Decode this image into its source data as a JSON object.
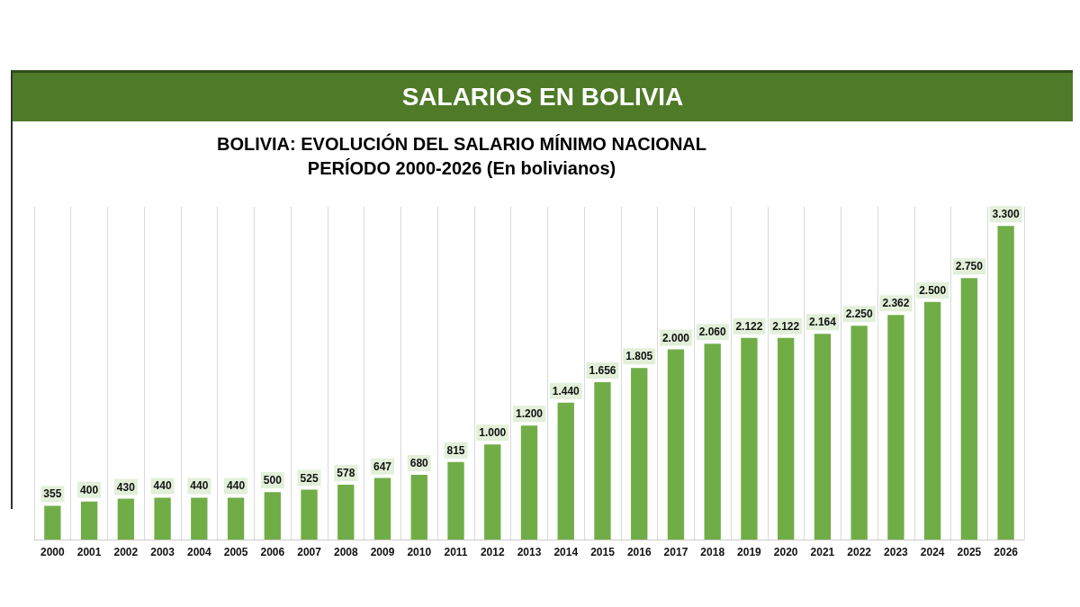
{
  "chart_data": {
    "type": "bar",
    "title": "SALARIOS EN BOLIVIA",
    "subtitle": "BOLIVIA: EVOLUCIÓN DEL SALARIO MÍNIMO NACIONAL\nPERÍODO 2000-2026 (En bolivianos)",
    "categories": [
      "2000",
      "2001",
      "2002",
      "2003",
      "2004",
      "2005",
      "2006",
      "2007",
      "2008",
      "2009",
      "2010",
      "2011",
      "2012",
      "2013",
      "2014",
      "2015",
      "2016",
      "2017",
      "2018",
      "2019",
      "2020",
      "2021",
      "2022",
      "2023",
      "2024",
      "2025",
      "2026"
    ],
    "values": [
      355,
      400,
      430,
      440,
      440,
      440,
      500,
      525,
      578,
      647,
      680,
      815,
      1000,
      1200,
      1440,
      1656,
      1805,
      2000,
      2060,
      2122,
      2122,
      2164,
      2250,
      2362,
      2500,
      2750,
      3300
    ],
    "value_labels": [
      "355",
      "400",
      "430",
      "440",
      "440",
      "440",
      "500",
      "525",
      "578",
      "647",
      "680",
      "815",
      "1.000",
      "1.200",
      "1.440",
      "1.656",
      "1.805",
      "2.000",
      "2.060",
      "2.122",
      "2.122",
      "2.164",
      "2.250",
      "2.362",
      "2.500",
      "2.750",
      "3.300"
    ],
    "color": "#70ad47",
    "grid": "x",
    "tick_labels": "x"
  }
}
